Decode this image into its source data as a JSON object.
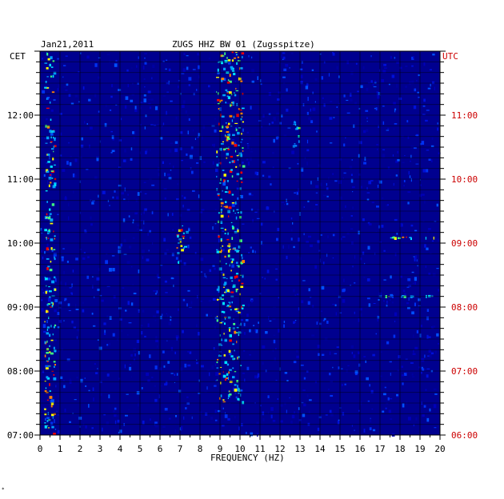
{
  "header": {
    "date": "Jan21,2011",
    "station": "ZUGS HHZ BW 01 (Zugsspitze)",
    "left_zone": "CET",
    "right_zone": "UTC"
  },
  "footer_mark": "*",
  "colors": {
    "background": "#00008f",
    "utc_text": "#cc0000",
    "grid": "#000000"
  },
  "chart_data": {
    "type": "heatmap",
    "title": "ZUGS HHZ BW 01 (Zugsspitze)",
    "date": "Jan21,2011",
    "xlabel": "FREQUENCY (HZ)",
    "xlim": [
      0,
      20
    ],
    "x_ticks": [
      "0",
      "1",
      "2",
      "3",
      "4",
      "5",
      "6",
      "7",
      "8",
      "9",
      "10",
      "11",
      "12",
      "13",
      "14",
      "15",
      "16",
      "17",
      "18",
      "19",
      "20"
    ],
    "y_left_label": "CET",
    "y_left_ticks": [
      "12:00",
      "11:00",
      "10:00",
      "09:00",
      "08:00",
      "07:00"
    ],
    "y_right_label": "UTC",
    "y_right_ticks": [
      "11:00",
      "10:00",
      "09:00",
      "08:00",
      "07:00",
      "06:00"
    ],
    "time_range_cet": [
      "07:00",
      "13:00"
    ],
    "colormap": "jet (dark blue low → red high)",
    "grid": true,
    "features": [
      {
        "freq_hz": [
          0.2,
          0.8
        ],
        "cet": [
          "07:00",
          "13:00"
        ],
        "intensity": "high"
      },
      {
        "freq_hz": [
          8.8,
          10.2
        ],
        "cet": [
          "07:30",
          "13:00"
        ],
        "intensity": "high"
      },
      {
        "freq_hz": [
          6.8,
          7.4
        ],
        "cet": [
          "09:40",
          "10:20"
        ],
        "intensity": "high"
      },
      {
        "freq_hz": [
          12.6,
          13.0
        ],
        "cet": [
          "11:30",
          "12:00"
        ],
        "intensity": "medium"
      },
      {
        "freq_hz": [
          17.0,
          20.0
        ],
        "cet": [
          "09:10",
          "09:10"
        ],
        "intensity": "high"
      },
      {
        "freq_hz": [
          17.5,
          20.0
        ],
        "cet": [
          "10:05",
          "10:05"
        ],
        "intensity": "high"
      }
    ]
  }
}
